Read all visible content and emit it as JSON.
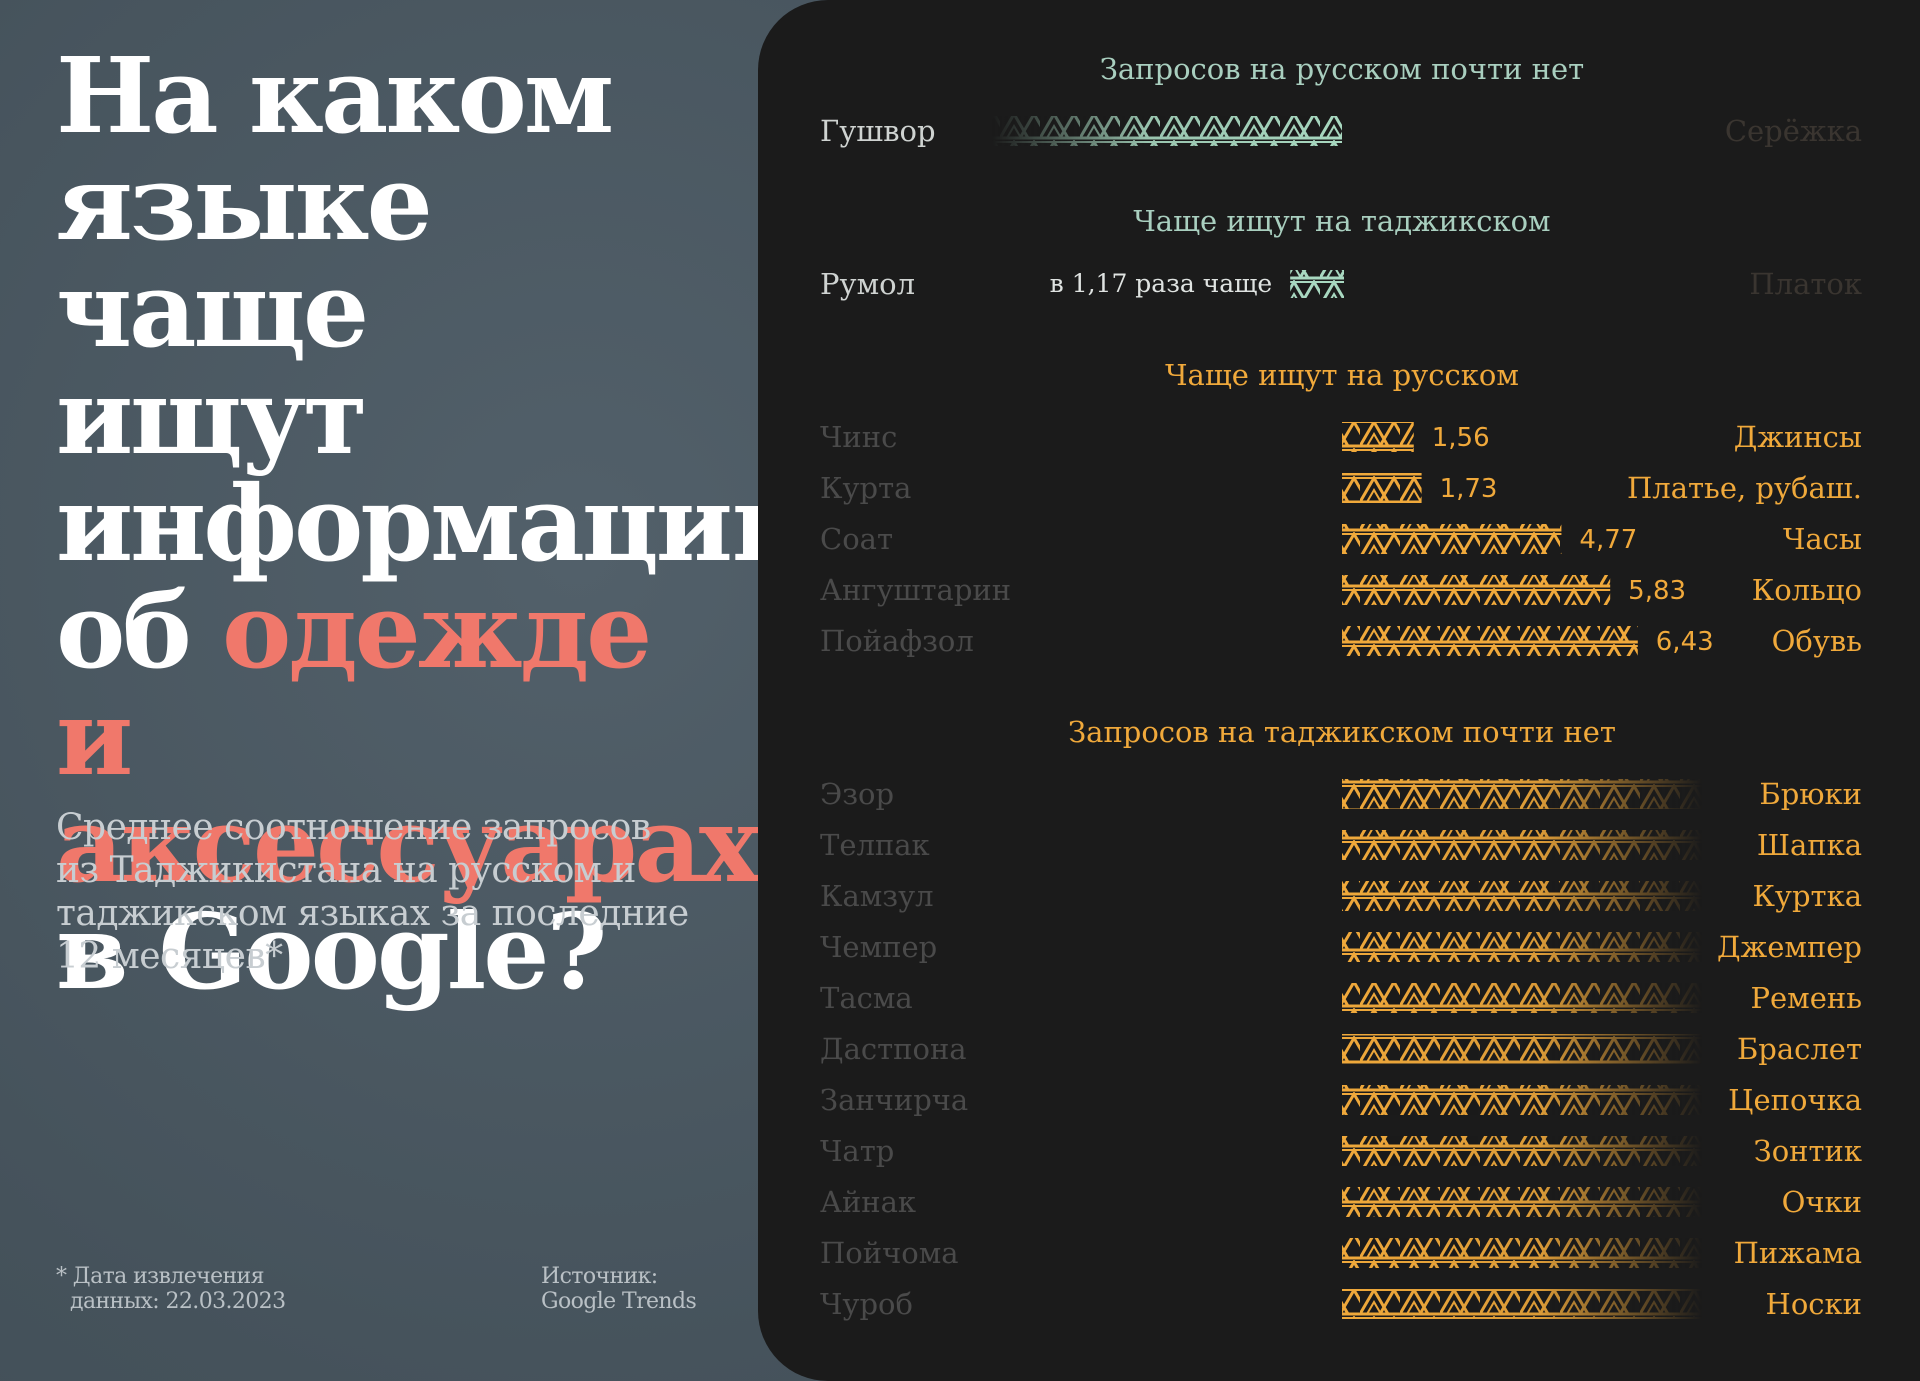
{
  "title": {
    "line1": "На каком",
    "line2": "языке чаще",
    "line3": "ищут",
    "line4": "информацию",
    "line5_pre": "об ",
    "line5_accent": "одежде и",
    "line6_accent": "аксессуарах",
    "line7": "в Google?"
  },
  "subtitle": "Среднее соотношение запросов из Таджикистана на русском и таджикском языках за последние 12 месяцев*",
  "footnote": {
    "line1": "* Дата извлечения",
    "line2": "данных: 22.03.2023"
  },
  "source": {
    "line1": "Источник:",
    "line2": "Google Trends"
  },
  "colors": {
    "background": "#4a5760",
    "panel": "#1b1b1b",
    "accent": "#f0786b",
    "tajik_bar": "#a8d8c0",
    "russian_bar": "#f0a93b",
    "header_tajik": "#a9cfbf",
    "header_russian": "#f0a93b",
    "label_muted": "#4a4a4a"
  },
  "chart_data": {
    "type": "bar",
    "sections": [
      {
        "header": "Запросов на русском почти нет",
        "side": "tajik",
        "style": "fade",
        "rows": [
          {
            "tajik": "Гушвор",
            "russian": "Серёжка",
            "value": null
          }
        ]
      },
      {
        "header": "Чаще ищут на таджикском",
        "side": "tajik",
        "style": "value",
        "rows": [
          {
            "tajik": "Румол",
            "russian": "Платок",
            "value": 1.17,
            "label": "в 1,17 раза чаще"
          }
        ]
      },
      {
        "header": "Чаще ищут на русском",
        "side": "russian",
        "style": "value",
        "rows": [
          {
            "tajik": "Чинс",
            "russian": "Джинсы",
            "value": 1.56,
            "label": "1,56"
          },
          {
            "tajik": "Курта",
            "russian": "Платье, рубаш.",
            "value": 1.73,
            "label": "1,73"
          },
          {
            "tajik": "Соат",
            "russian": "Часы",
            "value": 4.77,
            "label": "4,77"
          },
          {
            "tajik": "Ангуштарин",
            "russian": "Кольцо",
            "value": 5.83,
            "label": "5,83"
          },
          {
            "tajik": "Пойафзол",
            "russian": "Обувь",
            "value": 6.43,
            "label": "6,43"
          }
        ]
      },
      {
        "header": "Запросов на таджикском почти нет",
        "side": "russian",
        "style": "fade",
        "rows": [
          {
            "tajik": "Эзор",
            "russian": "Брюки",
            "value": null
          },
          {
            "tajik": "Телпак",
            "russian": "Шапка",
            "value": null
          },
          {
            "tajik": "Камзул",
            "russian": "Куртка",
            "value": null
          },
          {
            "tajik": "Чемпер",
            "russian": "Джемпер",
            "value": null
          },
          {
            "tajik": "Тасма",
            "russian": "Ремень",
            "value": null
          },
          {
            "tajik": "Дастпона",
            "russian": "Браслет",
            "value": null
          },
          {
            "tajik": "Занчирча",
            "russian": "Цепочка",
            "value": null
          },
          {
            "tajik": "Чатр",
            "russian": "Зонтик",
            "value": null
          },
          {
            "tajik": "Айнак",
            "russian": "Очки",
            "value": null
          },
          {
            "tajik": "Пойчома",
            "russian": "Пижама",
            "value": null
          },
          {
            "tajik": "Чуроб",
            "russian": "Носки",
            "value": null
          }
        ]
      }
    ]
  }
}
